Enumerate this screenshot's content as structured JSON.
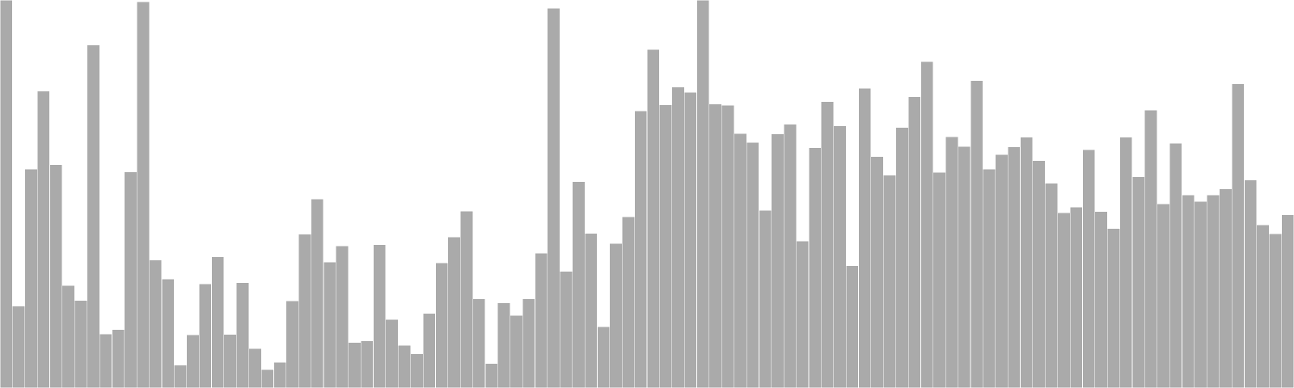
{
  "chart_data": {
    "type": "bar",
    "title": "",
    "xlabel": "",
    "ylabel": "",
    "grid": false,
    "legend": "none",
    "bar_color": "#aaaaaa",
    "bar_edge_color": "#ffffff",
    "background_color": "#ffffff",
    "ylim": [
      0,
      100
    ],
    "values": [
      100,
      21.1,
      56.4,
      76.5,
      57.6,
      26.4,
      22.6,
      88.4,
      13.9,
      15.1,
      55.7,
      99.5,
      33,
      28.1,
      5.9,
      13.7,
      26.8,
      33.8,
      13.8,
      27.1,
      10.2,
      4.7,
      6.6,
      22.5,
      39.6,
      48.7,
      32.5,
      36.6,
      11.7,
      12.1,
      36.9,
      17.7,
      11,
      8.8,
      19.2,
      32.3,
      38.9,
      45.6,
      23,
      6.3,
      21.9,
      18.7,
      23,
      34.7,
      97.9,
      30.1,
      53.2,
      39.9,
      15.8,
      37.3,
      44.1,
      71.4,
      87.2,
      73,
      77.6,
      76.2,
      100,
      73.2,
      72.9,
      65.6,
      63.3,
      45.8,
      65.5,
      68,
      37.9,
      61.9,
      73.8,
      67.6,
      31.5,
      77.3,
      59.6,
      54.9,
      67.1,
      75.1,
      84.1,
      55.6,
      64.7,
      62.2,
      79.2,
      56.4,
      60.2,
      62.1,
      64.6,
      58.6,
      52.8,
      45.2,
      46.6,
      61.4,
      45.5,
      41.1,
      64.6,
      54.4,
      71.6,
      47.5,
      63.1,
      49.7,
      48.1,
      49.8,
      51.3,
      78.4,
      53.6,
      42,
      39.7,
      44.6
    ]
  }
}
